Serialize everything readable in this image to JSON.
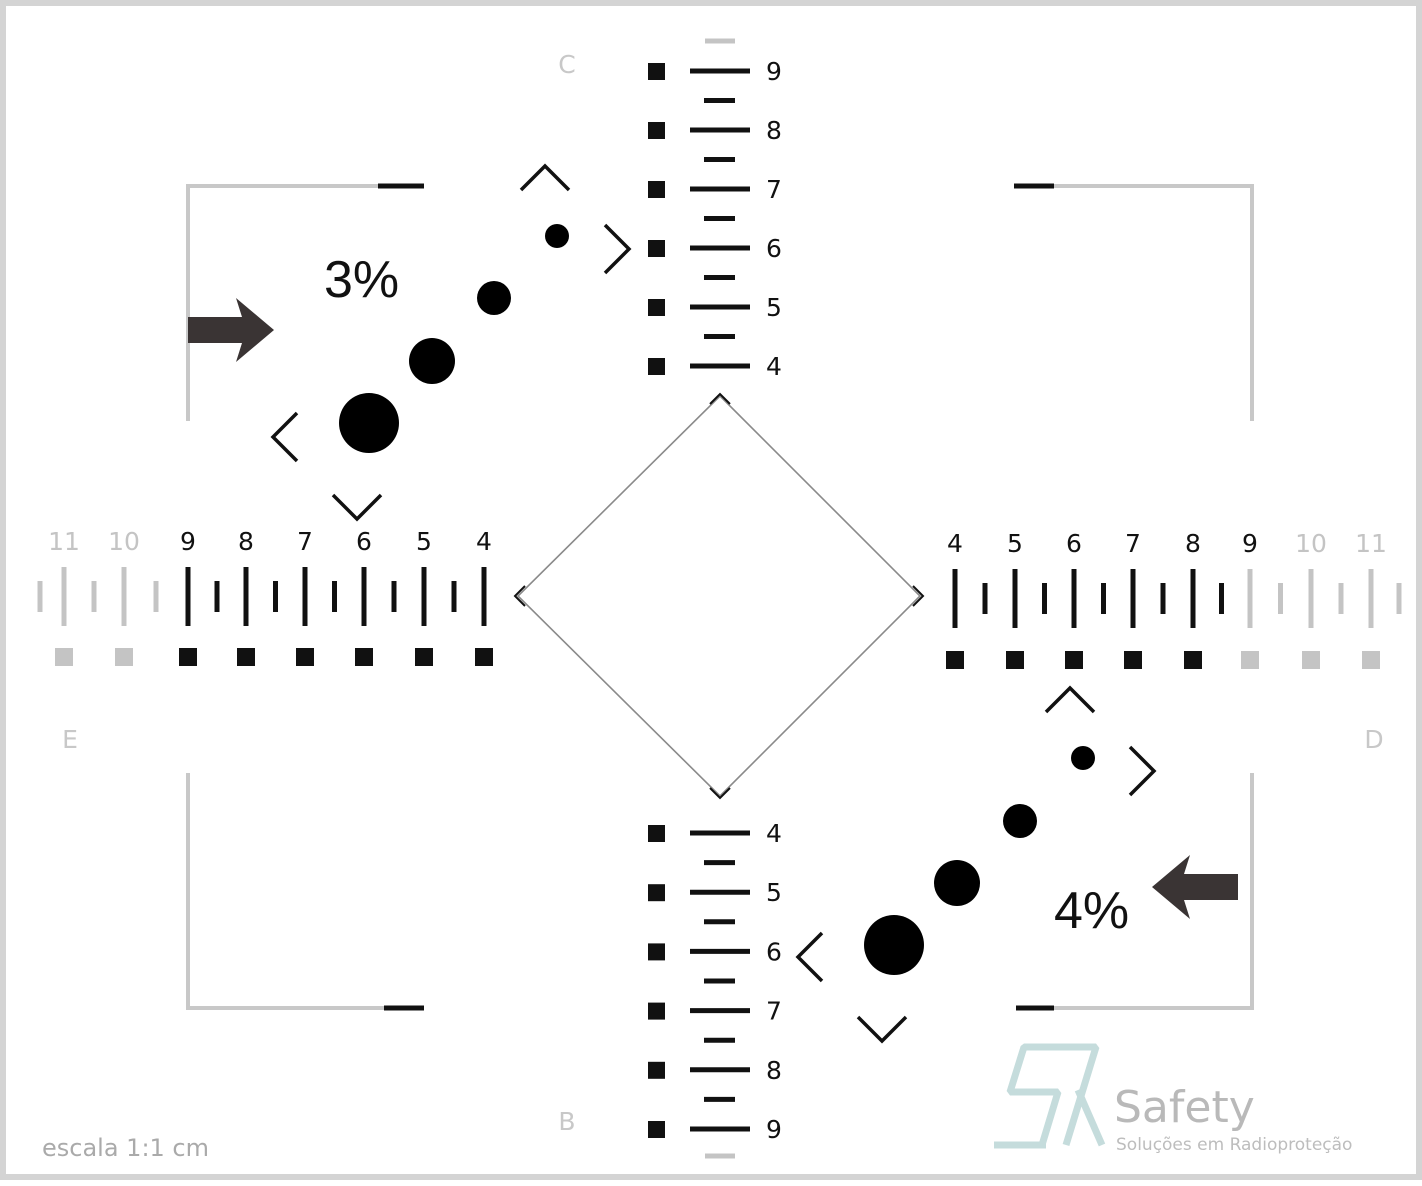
{
  "phantom": {
    "side_labels": {
      "top": "C",
      "bottom": "B",
      "left": "E",
      "right": "D"
    },
    "scale_numbers": {
      "vertical_top": [
        "9",
        "8",
        "7",
        "6",
        "5",
        "4"
      ],
      "vertical_bottom": [
        "4",
        "5",
        "6",
        "7",
        "8",
        "9"
      ],
      "horizontal_left": [
        "11",
        "10",
        "9",
        "8",
        "7",
        "6",
        "5",
        "4"
      ],
      "horizontal_right": [
        "4",
        "5",
        "6",
        "7",
        "8",
        "9",
        "10",
        "11"
      ]
    },
    "contrast_labels": {
      "upper_left": "3%",
      "lower_right": "4%"
    },
    "scale_caption": "escala 1:1 cm",
    "colors": {
      "ink": "#111111",
      "faint": "#c4c4c4",
      "frame": "#d4d4d4",
      "arrow": "#3a3434",
      "logo": "#c5dcdc"
    }
  },
  "brand": {
    "name": "Safety",
    "tagline": "Soluções em Radioproteção"
  }
}
